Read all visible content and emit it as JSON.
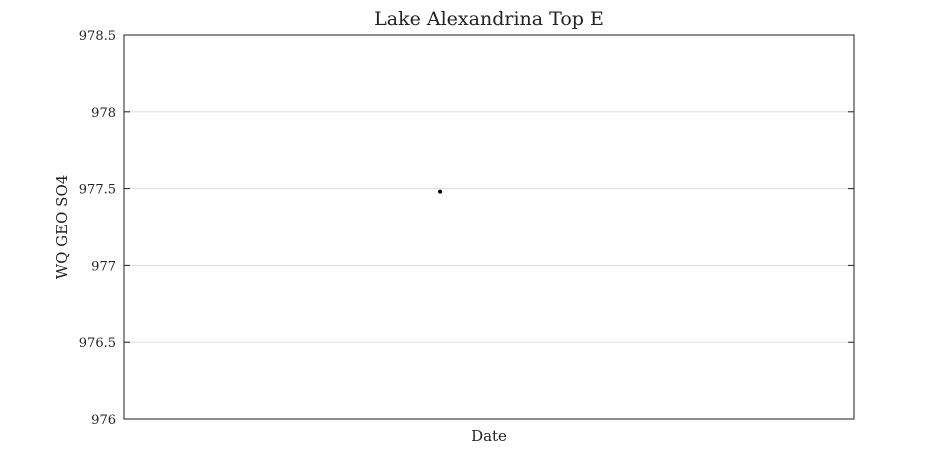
{
  "chart_data": {
    "type": "scatter",
    "title": "Lake Alexandrina Top E",
    "xlabel": "Date",
    "ylabel": "WQ GEO SO4",
    "ylim": [
      976,
      978.5
    ],
    "yticks": [
      976,
      976.5,
      977,
      977.5,
      978,
      978.5
    ],
    "ytick_labels": [
      "976",
      "976.5",
      "977",
      "977.5",
      "978",
      "978.5"
    ],
    "grid": true,
    "series": [
      {
        "points": [
          {
            "x": 0.433,
            "y": 977.48
          }
        ],
        "color": "#000000"
      }
    ],
    "colors": {
      "grid": "#dddddd",
      "axis": "#222222",
      "marker": "#000000"
    }
  }
}
